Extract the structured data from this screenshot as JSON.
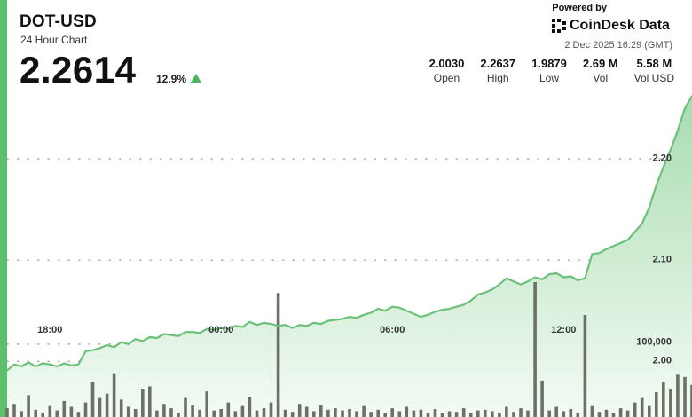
{
  "header": {
    "title": "DOT-USD",
    "subtitle": "24 Hour Chart",
    "price": "2.2614",
    "change": "12.9%",
    "change_direction": "up"
  },
  "branding": {
    "powered_by": "Powered by",
    "logo_text": "CoinDesk Data",
    "timestamp": "2 Dec 2025 16:29 (GMT)"
  },
  "stats": [
    {
      "value": "2.0030",
      "label": "Open"
    },
    {
      "value": "2.2637",
      "label": "High"
    },
    {
      "value": "1.9879",
      "label": "Low"
    },
    {
      "value": "2.69 M",
      "label": "Vol"
    },
    {
      "value": "5.58 M",
      "label": "Vol USD"
    }
  ],
  "colors": {
    "line": "#6cc17a",
    "area_top": "#a9dcb0",
    "area_bottom": "#f4fbf5",
    "volume_bar": "#6b7165",
    "accent": "#5bbf6b",
    "up_arrow": "#48b85a"
  },
  "chart_data": {
    "type": "line",
    "title": "DOT-USD",
    "subtitle": "24 Hour Chart",
    "x_labels": [
      "18:00",
      "00:00",
      "06:00",
      "12:00"
    ],
    "x_label_hours": [
      2,
      8,
      14,
      20
    ],
    "x_range_hours": [
      0.5,
      24.5
    ],
    "y_ticks": [
      2.0,
      2.1,
      2.2
    ],
    "y_tick_labels": [
      "2.00",
      "2.10",
      "2.20"
    ],
    "y_range": [
      1.945,
      2.265
    ],
    "volume_tick_label": "100,000",
    "volume_tick_value": 100000,
    "volume_range": [
      0,
      185000
    ],
    "grid": "dotted horizontal",
    "price_series": {
      "name": "DOT-USD",
      "x_hours": [
        0.5,
        0.75,
        1.0,
        1.25,
        1.5,
        1.75,
        2.0,
        2.25,
        2.5,
        2.75,
        3.0,
        3.25,
        3.5,
        3.75,
        4.0,
        4.25,
        4.5,
        4.75,
        5.0,
        5.25,
        5.5,
        5.75,
        6.0,
        6.25,
        6.5,
        6.75,
        7.0,
        7.25,
        7.5,
        7.75,
        8.0,
        8.25,
        8.5,
        8.75,
        9.0,
        9.25,
        9.5,
        9.75,
        10.0,
        10.25,
        10.5,
        10.75,
        11.0,
        11.25,
        11.5,
        11.75,
        12.0,
        12.25,
        12.5,
        12.75,
        13.0,
        13.25,
        13.5,
        13.75,
        14.0,
        14.25,
        14.5,
        14.75,
        15.0,
        15.25,
        15.5,
        15.75,
        16.0,
        16.25,
        16.5,
        16.75,
        17.0,
        17.25,
        17.5,
        17.75,
        18.0,
        18.25,
        18.5,
        18.75,
        19.0,
        19.25,
        19.5,
        19.75,
        20.0,
        20.25,
        20.5,
        20.75,
        21.0,
        21.25,
        21.5,
        21.75,
        22.0,
        22.25,
        22.5,
        22.75,
        23.0,
        23.25,
        23.5,
        23.75,
        24.0,
        24.25,
        24.5
      ],
      "values": [
        1.991,
        1.997,
        1.995,
        1.999,
        1.995,
        1.998,
        1.997,
        1.995,
        1.998,
        1.996,
        1.997,
        2.01,
        2.011,
        2.013,
        2.016,
        2.014,
        2.019,
        2.017,
        2.022,
        2.02,
        2.024,
        2.023,
        2.027,
        2.026,
        2.025,
        2.029,
        2.029,
        2.028,
        2.032,
        2.031,
        2.033,
        2.032,
        2.035,
        2.034,
        2.039,
        2.036,
        2.038,
        2.037,
        2.035,
        2.036,
        2.033,
        2.036,
        2.035,
        2.038,
        2.037,
        2.04,
        2.041,
        2.042,
        2.044,
        2.043,
        2.046,
        2.048,
        2.052,
        2.05,
        2.054,
        2.053,
        2.05,
        2.047,
        2.044,
        2.046,
        2.049,
        2.051,
        2.052,
        2.054,
        2.056,
        2.06,
        2.066,
        2.068,
        2.071,
        2.076,
        2.082,
        2.079,
        2.076,
        2.079,
        2.083,
        2.081,
        2.086,
        2.087,
        2.083,
        2.084,
        2.08,
        2.082,
        2.106,
        2.107,
        2.111,
        2.114,
        2.117,
        2.12,
        2.128,
        2.136,
        2.152,
        2.174,
        2.192,
        2.209,
        2.228,
        2.25,
        2.262
      ]
    },
    "volume_series": {
      "name": "Vol",
      "x_hours": [
        0.5,
        0.75,
        1.0,
        1.25,
        1.5,
        1.75,
        2.0,
        2.25,
        2.5,
        2.75,
        3.0,
        3.25,
        3.5,
        3.75,
        4.0,
        4.25,
        4.5,
        4.75,
        5.0,
        5.25,
        5.5,
        5.75,
        6.0,
        6.25,
        6.5,
        6.75,
        7.0,
        7.25,
        7.5,
        7.75,
        8.0,
        8.25,
        8.5,
        8.75,
        9.0,
        9.25,
        9.5,
        9.75,
        10.0,
        10.25,
        10.5,
        10.75,
        11.0,
        11.25,
        11.5,
        11.75,
        12.0,
        12.25,
        12.5,
        12.75,
        13.0,
        13.25,
        13.5,
        13.75,
        14.0,
        14.25,
        14.5,
        14.75,
        15.0,
        15.25,
        15.5,
        15.75,
        16.0,
        16.25,
        16.5,
        16.75,
        17.0,
        17.25,
        17.5,
        17.75,
        18.0,
        18.25,
        18.5,
        18.75,
        19.0,
        19.25,
        19.5,
        19.75,
        20.0,
        20.25,
        20.5,
        20.75,
        21.0,
        21.25,
        21.5,
        21.75,
        22.0,
        22.25,
        22.5,
        22.75,
        23.0,
        23.25,
        23.5,
        23.75,
        24.0,
        24.25,
        24.5
      ],
      "values": [
        12000,
        18000,
        8000,
        30000,
        10000,
        6000,
        15000,
        9000,
        22000,
        14000,
        7000,
        20000,
        48000,
        26000,
        32000,
        60000,
        24000,
        14000,
        11000,
        38000,
        42000,
        9000,
        18000,
        12000,
        6000,
        26000,
        16000,
        10000,
        35000,
        9000,
        11000,
        20000,
        8000,
        15000,
        28000,
        9000,
        12000,
        20000,
        170000,
        10000,
        7000,
        18000,
        14000,
        8000,
        16000,
        10000,
        12000,
        9000,
        11000,
        8000,
        15000,
        7000,
        10000,
        6000,
        12000,
        8000,
        14000,
        9000,
        10000,
        6000,
        11000,
        5000,
        8000,
        7000,
        12000,
        6000,
        9000,
        10000,
        8000,
        6000,
        14000,
        7000,
        12000,
        9000,
        185000,
        50000,
        9000,
        14000,
        8000,
        11000,
        6000,
        140000,
        15000,
        7000,
        10000,
        6000,
        12000,
        9000,
        20000,
        26000,
        15000,
        34000,
        48000,
        38000,
        58000,
        55000,
        44000
      ]
    }
  }
}
